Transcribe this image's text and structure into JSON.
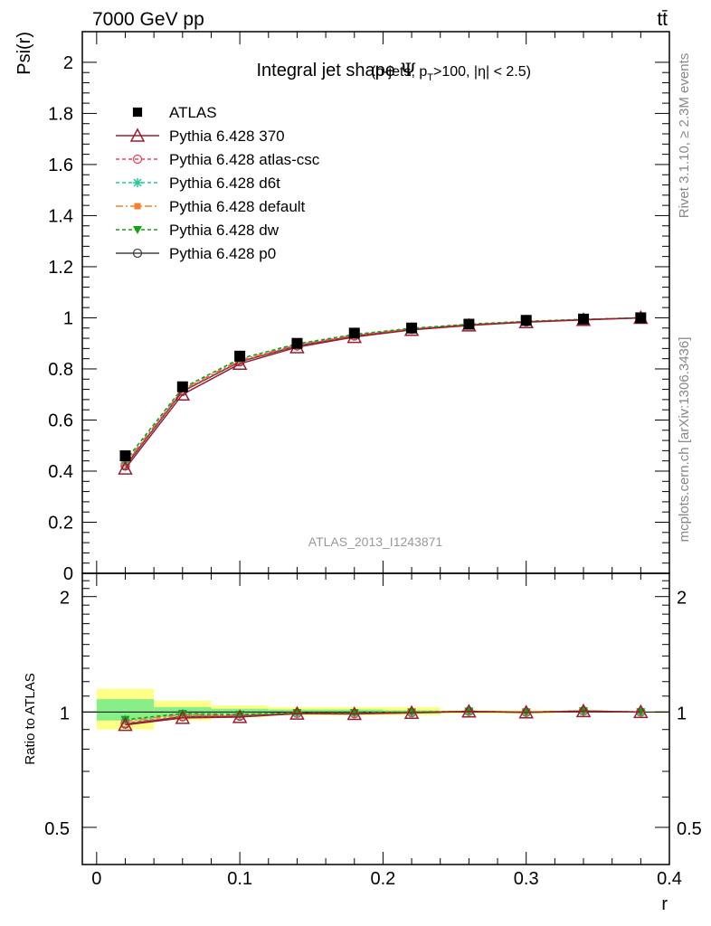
{
  "header": {
    "beam": "7000 GeV pp",
    "process": "tt̄",
    "title_main": "Integral jet shape",
    "title_symbol": "Ψ",
    "title_sub": "(b-jets, p",
    "title_sub_idx": "T",
    "title_sub_rest": ">100, |η| < 2.5)",
    "analysis_id": "ATLAS_2013_I1243871",
    "side_text_top": "Rivet 3.1.10, ≥ 2.3M events",
    "side_text_bottom": "mcplots.cern.ch [arXiv:1306.3436]"
  },
  "colors": {
    "ATLAS": "#000000",
    "Pythia 6.428 370": "#9b1b30",
    "Pythia 6.428 atlas-csc": "#f0405a",
    "Pythia 6.428 d6t": "#22c99a",
    "Pythia 6.428 default": "#f57f2a",
    "Pythia 6.428 dw": "#18a018",
    "Pythia 6.428 p0": "#444444",
    "band_inner": "#88ee88",
    "band_outer": "#ffff88"
  },
  "chart_data": [
    {
      "type": "line",
      "panel": "main",
      "ylabel": "Psi(r)",
      "xlim": [
        -0.01,
        0.4
      ],
      "ylim": [
        0,
        2.12
      ],
      "yticks": [
        0,
        0.2,
        0.4,
        0.6,
        0.8,
        1,
        1.2,
        1.4,
        1.6,
        1.8,
        2
      ],
      "yticklabels": [
        "0",
        "0.2",
        "0.4",
        "0.6",
        "0.8",
        "1",
        "1.2",
        "1.4",
        "1.6",
        "1.8",
        "2"
      ],
      "legend_position": "top-left",
      "x": [
        0.02,
        0.06,
        0.1,
        0.14,
        0.18,
        0.22,
        0.26,
        0.3,
        0.34,
        0.38
      ],
      "series": [
        {
          "name": "ATLAS",
          "values": [
            0.46,
            0.73,
            0.85,
            0.9,
            0.94,
            0.96,
            0.975,
            0.99,
            0.995,
            1.0
          ]
        },
        {
          "name": "Pythia 6.428 370",
          "values": [
            0.41,
            0.7,
            0.82,
            0.885,
            0.925,
            0.953,
            0.97,
            0.983,
            0.992,
            1.0
          ]
        },
        {
          "name": "Pythia 6.428 atlas-csc",
          "values": [
            0.425,
            0.715,
            0.83,
            0.892,
            0.93,
            0.956,
            0.973,
            0.985,
            0.993,
            1.0
          ]
        },
        {
          "name": "Pythia 6.428 d6t",
          "values": [
            0.44,
            0.725,
            0.84,
            0.898,
            0.935,
            0.959,
            0.975,
            0.986,
            0.994,
            1.0
          ]
        },
        {
          "name": "Pythia 6.428 default",
          "values": [
            0.43,
            0.72,
            0.835,
            0.895,
            0.932,
            0.957,
            0.974,
            0.985,
            0.993,
            1.0
          ]
        },
        {
          "name": "Pythia 6.428 dw",
          "values": [
            0.44,
            0.725,
            0.84,
            0.898,
            0.935,
            0.959,
            0.975,
            0.986,
            0.994,
            1.0
          ]
        },
        {
          "name": "Pythia 6.428 p0",
          "values": [
            0.42,
            0.712,
            0.828,
            0.89,
            0.929,
            0.955,
            0.972,
            0.984,
            0.993,
            1.0
          ]
        }
      ]
    },
    {
      "type": "line",
      "panel": "ratio",
      "ylabel": "Ratio to ATLAS",
      "xlabel": "r",
      "xlim": [
        -0.01,
        0.4
      ],
      "ylim": [
        0.4,
        2.3
      ],
      "log_y": true,
      "yticklabels": [
        "0.5",
        "1",
        "2"
      ],
      "xticklabels": [
        "0",
        "0.1",
        "0.2",
        "0.3",
        "0.4"
      ],
      "bin_edges": [
        0,
        0.04,
        0.08,
        0.12,
        0.16,
        0.2,
        0.24,
        0.28,
        0.32,
        0.36,
        0.4
      ],
      "band_outer": [
        [
          0.9,
          1.15
        ],
        [
          0.95,
          1.07
        ],
        [
          0.97,
          1.04
        ],
        [
          0.98,
          1.03
        ],
        [
          0.98,
          1.03
        ],
        [
          0.98,
          1.03
        ],
        [
          0.99,
          1.01
        ],
        [
          0.99,
          1.01
        ],
        [
          0.995,
          1.005
        ],
        [
          0.995,
          1.005
        ]
      ],
      "band_inner": [
        [
          0.95,
          1.08
        ],
        [
          0.97,
          1.03
        ],
        [
          0.985,
          1.02
        ],
        [
          0.99,
          1.015
        ],
        [
          0.99,
          1.015
        ],
        [
          0.99,
          1.01
        ],
        [
          0.995,
          1.005
        ],
        [
          0.995,
          1.005
        ],
        [
          0.998,
          1.002
        ],
        [
          0.998,
          1.002
        ]
      ],
      "x": [
        0.02,
        0.06,
        0.1,
        0.14,
        0.18,
        0.22,
        0.26,
        0.3,
        0.34,
        0.38
      ],
      "series": [
        {
          "name": "Pythia 6.428 370",
          "values": [
            0.925,
            0.965,
            0.97,
            0.99,
            0.988,
            0.995,
            1.003,
            0.998,
            1.005,
            1.0
          ]
        },
        {
          "name": "Pythia 6.428 atlas-csc",
          "values": [
            0.935,
            0.975,
            0.978,
            0.993,
            0.99,
            0.997,
            1.004,
            0.998,
            1.006,
            1.0
          ]
        },
        {
          "name": "Pythia 6.428 d6t",
          "values": [
            0.955,
            0.99,
            0.985,
            0.995,
            0.995,
            0.999,
            1.004,
            0.999,
            1.006,
            1.0
          ]
        },
        {
          "name": "Pythia 6.428 default",
          "values": [
            0.945,
            0.985,
            0.983,
            0.995,
            0.992,
            0.998,
            1.004,
            0.999,
            1.006,
            1.0
          ]
        },
        {
          "name": "Pythia 6.428 dw",
          "values": [
            0.955,
            0.99,
            0.985,
            0.995,
            0.995,
            0.999,
            1.004,
            0.999,
            1.006,
            1.0
          ]
        },
        {
          "name": "Pythia 6.428 p0",
          "values": [
            0.93,
            0.972,
            0.975,
            0.992,
            0.99,
            0.996,
            1.004,
            0.998,
            1.006,
            1.0
          ]
        }
      ]
    }
  ]
}
